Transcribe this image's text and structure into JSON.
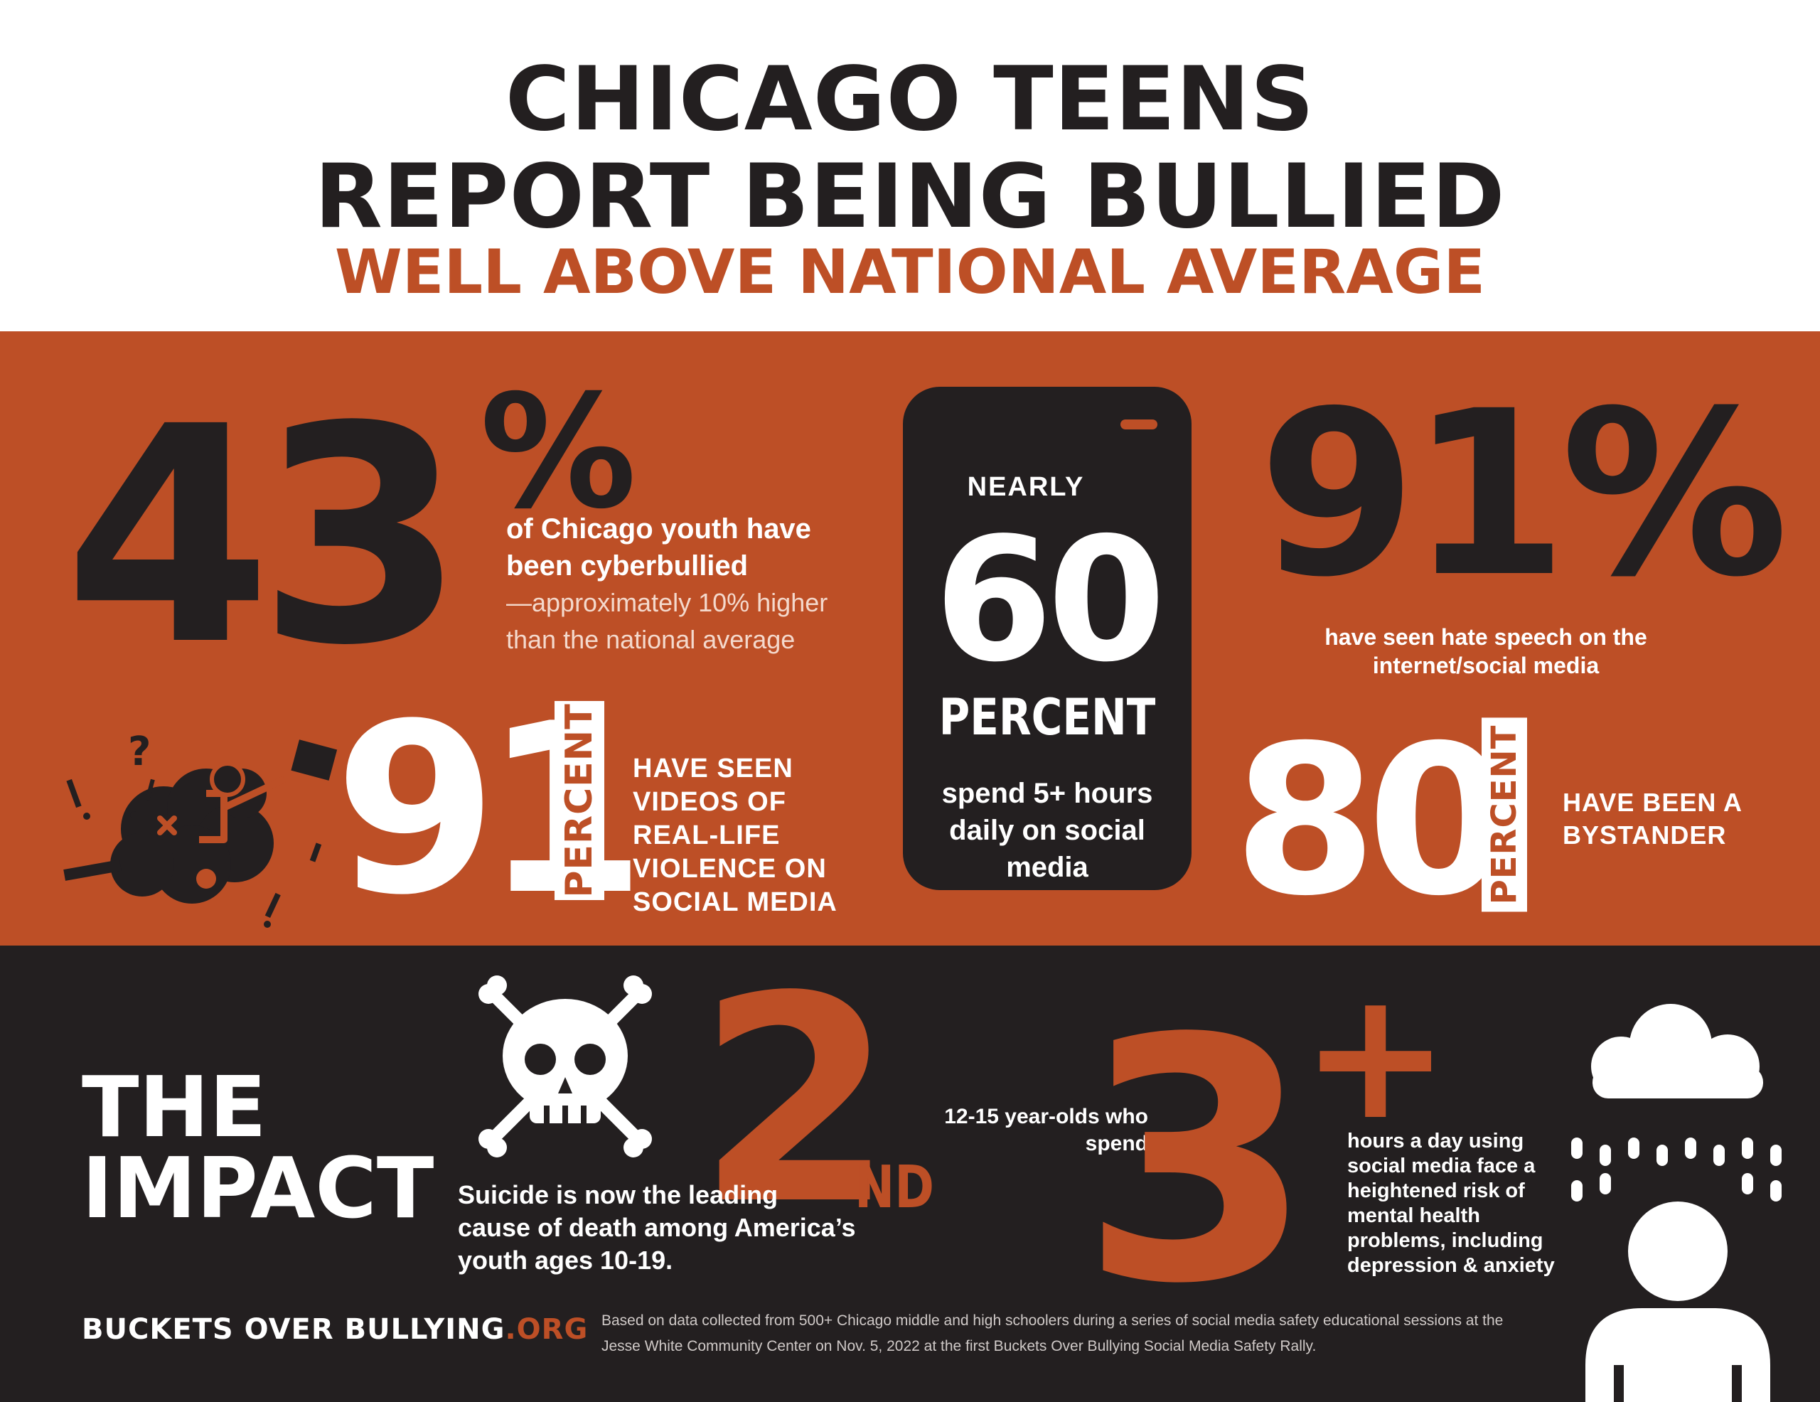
{
  "header": {
    "title_line1": "CHICAGO TEENS",
    "title_line2": "REPORT BEING BULLIED",
    "subtitle": "WELL ABOVE NATIONAL AVERAGE"
  },
  "stats": {
    "cyberbullied": {
      "number": "43",
      "percent_sign": "%",
      "text_bold": "of Chicago youth have been cyberbullied",
      "text_light": "—approximately 10% higher than the national average"
    },
    "phone": {
      "nearly": "NEARLY",
      "number": "60",
      "unit": "PERCENT",
      "text": "spend 5+ hours daily on social media"
    },
    "hate_speech": {
      "number": "91%",
      "text": "have seen hate speech on the internet/social media"
    },
    "violence_videos": {
      "number": "91",
      "unit": "PERCENT",
      "text": "HAVE SEEN VIDEOS OF REAL-LIFE VIOLENCE ON SOCIAL MEDIA"
    },
    "bystander": {
      "number": "80",
      "unit": "PERCENT",
      "text": "HAVE BEEN A BYSTANDER"
    }
  },
  "impact": {
    "title_line1": "THE",
    "title_line2": "IMPACT",
    "second_number": "2",
    "second_suffix": "ND",
    "second_text": "Suicide is now the leading cause of death among America’s youth ages 10-19.",
    "three_intro": "12-15 year-olds who spend",
    "three_number": "3",
    "three_plus": "+",
    "three_text": "hours a day using social media face a heightened risk of mental health problems, including depression & anxiety"
  },
  "footer": {
    "logo_main": "BUCKETS OVER BULLYING",
    "logo_tld": ".ORG",
    "note": "Based on data collected from 500+ Chicago middle and high schoolers during a series of social media safety educational sessions at the Jesse White Community Center on Nov. 5, 2022 at the first Buckets Over Bullying Social Media Safety Rally."
  },
  "colors": {
    "accent": "#bd4f26",
    "dark": "#231f20",
    "white": "#ffffff"
  },
  "icons": [
    "fight-cloud-icon",
    "phone-icon",
    "skull-crossbones-icon",
    "rain-cloud-person-icon"
  ]
}
